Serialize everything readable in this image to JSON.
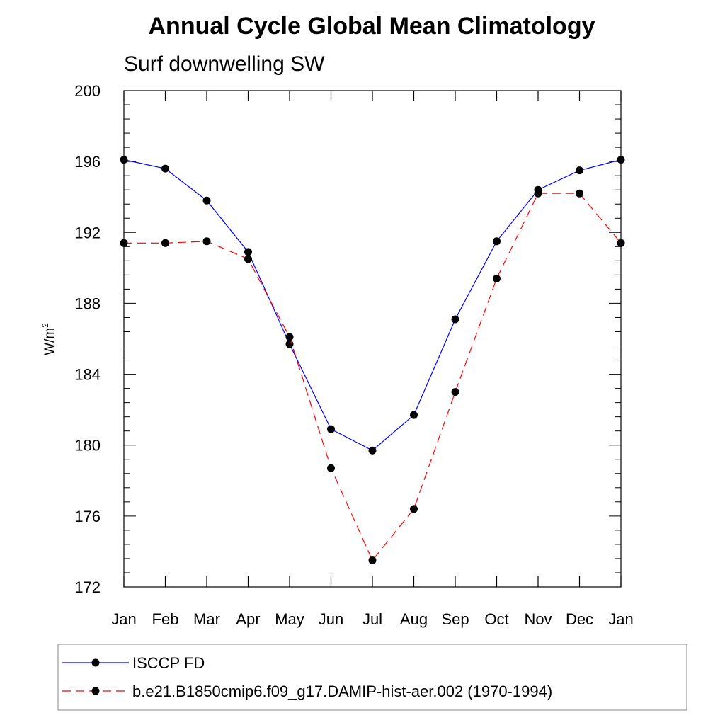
{
  "chart_data": {
    "type": "line",
    "title": "Annual Cycle Global Mean Climatology",
    "subtitle": "Surf downwelling SW",
    "xlabel": "",
    "ylabel": "W/m",
    "ylabel_superscript": "2",
    "categories": [
      "Jan",
      "Feb",
      "Mar",
      "Apr",
      "May",
      "Jun",
      "Jul",
      "Aug",
      "Sep",
      "Oct",
      "Nov",
      "Dec",
      "Jan"
    ],
    "ylim": [
      172,
      200
    ],
    "yticks": [
      172,
      176,
      180,
      184,
      188,
      192,
      196,
      200
    ],
    "grid": false,
    "legend_position": "bottom",
    "series": [
      {
        "name": "ISCCP FD",
        "color": "#0000ff",
        "line_style": "solid",
        "marker": "filled-circle",
        "values": [
          196.1,
          195.6,
          193.8,
          190.9,
          185.7,
          180.9,
          179.7,
          181.7,
          187.1,
          191.5,
          194.4,
          195.5,
          196.1
        ]
      },
      {
        "name": "b.e21.B1850cmip6.f09_g17.DAMIP-hist-aer.002 (1970-1994)",
        "color": "#ff0000",
        "line_style": "dashed",
        "marker": "filled-circle",
        "values": [
          191.4,
          191.4,
          191.5,
          190.5,
          186.1,
          178.7,
          173.5,
          176.4,
          183.0,
          189.4,
          194.2,
          194.2,
          191.4
        ]
      }
    ]
  }
}
